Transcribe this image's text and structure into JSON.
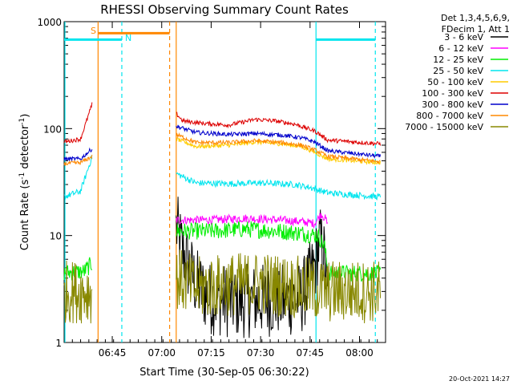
{
  "chart_data": {
    "type": "line",
    "title": "RHESSI Observing Summary Count Rates",
    "xlabel": "Start Time (30-Sep-05 06:30:22)",
    "ylabel_main": "Count Rate (s",
    "ylabel_sup": "-1",
    "ylabel_mid": " detector",
    "ylabel_sup2": "-1",
    "ylabel_end": ")",
    "x_unit": "minutes after 06:30:22",
    "xlim": [
      0,
      97.5
    ],
    "ylim": [
      1,
      1000
    ],
    "yscale": "log",
    "x_ticks": [
      {
        "label": "06:45",
        "value": 14.6
      },
      {
        "label": "07:00",
        "value": 29.6
      },
      {
        "label": "07:15",
        "value": 44.6
      },
      {
        "label": "07:30",
        "value": 59.6
      },
      {
        "label": "07:45",
        "value": 74.6
      },
      {
        "label": "08:00",
        "value": 89.6
      }
    ],
    "y_ticks": [
      {
        "label": "1",
        "value": 1
      },
      {
        "label": "10",
        "value": 10
      },
      {
        "label": "100",
        "value": 100
      },
      {
        "label": "1000",
        "value": 1000
      }
    ],
    "legend_header": [
      "Det 1,3,4,5,6,9,",
      "FDecim 1, Att 1"
    ],
    "timestamp": "20-Oct-2021 14:27",
    "annotations": [
      {
        "label": "S",
        "color": "#ff8800"
      },
      {
        "label": "N",
        "color": "#00e5ee"
      }
    ],
    "vertical_markers": [
      {
        "x": 10.3,
        "color": "#ff8800",
        "style": "solid"
      },
      {
        "x": 32.0,
        "color": "#ff8800",
        "style": "dashed"
      },
      {
        "x": 34.0,
        "color": "#ff8800",
        "style": "solid"
      },
      {
        "x": 17.5,
        "color": "#00e5ee",
        "style": "dashed"
      },
      {
        "x": 76.4,
        "color": "#00e5ee",
        "style": "solid"
      },
      {
        "x": 94.4,
        "color": "#00e5ee",
        "style": "dashed"
      }
    ],
    "bars": [
      {
        "x0": 10.3,
        "x1": 32.0,
        "y": 780,
        "color": "#ff8800"
      },
      {
        "x0": 0,
        "x1": 17.5,
        "y": 680,
        "color": "#00e5ee"
      },
      {
        "x0": 76.4,
        "x1": 94.4,
        "y": 680,
        "color": "#00e5ee"
      }
    ],
    "gaps": [
      [
        8.5,
        34.0
      ]
    ],
    "series": [
      {
        "name": "3 - 6 keV",
        "color": "#000000",
        "noise": 0.35,
        "points": [
          [
            34.0,
            12
          ],
          [
            36,
            7
          ],
          [
            38,
            5
          ],
          [
            40,
            3.5
          ],
          [
            44,
            2.6
          ],
          [
            52,
            2.4
          ],
          [
            60,
            2.5
          ],
          [
            68,
            2.5
          ],
          [
            72,
            2.6
          ],
          [
            76,
            5
          ],
          [
            77.5,
            9
          ],
          [
            79,
            6
          ],
          [
            80,
            2.2
          ]
        ]
      },
      {
        "name": "6 - 12 keV",
        "color": "#ff00ff",
        "noise": 0.04,
        "points": [
          [
            34.0,
            14
          ],
          [
            45,
            14
          ],
          [
            55,
            14.5
          ],
          [
            65,
            14
          ],
          [
            72,
            13.5
          ],
          [
            76,
            13
          ],
          [
            78,
            16
          ],
          [
            79.5,
            14
          ],
          [
            80,
            12
          ]
        ]
      },
      {
        "name": "12 - 25 keV",
        "color": "#00ee00",
        "noise": 0.08,
        "points": [
          [
            0,
            4.5
          ],
          [
            6,
            4.6
          ],
          [
            8.5,
            5.5
          ],
          [
            34.0,
            11
          ],
          [
            45,
            11
          ],
          [
            55,
            11.5
          ],
          [
            65,
            11
          ],
          [
            72,
            10.5
          ],
          [
            77,
            10
          ],
          [
            79,
            8
          ],
          [
            80,
            4.5
          ],
          [
            96,
            4.4
          ]
        ]
      },
      {
        "name": "25 - 50 keV",
        "color": "#00e5ee",
        "noise": 0.03,
        "points": [
          [
            0,
            23
          ],
          [
            5,
            26
          ],
          [
            8.5,
            55
          ],
          [
            34.0,
            38
          ],
          [
            40,
            31
          ],
          [
            50,
            30.5
          ],
          [
            60,
            31
          ],
          [
            70,
            30
          ],
          [
            75,
            28
          ],
          [
            80,
            25
          ],
          [
            96,
            23
          ]
        ]
      },
      {
        "name": "50 - 100 keV",
        "color": "#ffcc00",
        "noise": 0.02,
        "points": [
          [
            34.0,
            80
          ],
          [
            40,
            68
          ],
          [
            50,
            70
          ],
          [
            58,
            75
          ],
          [
            66,
            72
          ],
          [
            72,
            68
          ],
          [
            76,
            60
          ],
          [
            80,
            52
          ],
          [
            96,
            48
          ]
        ]
      },
      {
        "name": "100 - 300 keV",
        "color": "#dd0000",
        "noise": 0.02,
        "points": [
          [
            0,
            75
          ],
          [
            5,
            80
          ],
          [
            8.5,
            170
          ],
          [
            34.0,
            138
          ],
          [
            36,
            118
          ],
          [
            42,
            112
          ],
          [
            50,
            108
          ],
          [
            58,
            122
          ],
          [
            64,
            118
          ],
          [
            70,
            110
          ],
          [
            76,
            95
          ],
          [
            80,
            78
          ],
          [
            96,
            72
          ]
        ]
      },
      {
        "name": "300 - 800 keV",
        "color": "#0000cc",
        "noise": 0.02,
        "points": [
          [
            0,
            52
          ],
          [
            5,
            52
          ],
          [
            8.5,
            65
          ],
          [
            34.0,
            105
          ],
          [
            40,
            92
          ],
          [
            50,
            88
          ],
          [
            58,
            90
          ],
          [
            66,
            87
          ],
          [
            72,
            82
          ],
          [
            76,
            75
          ],
          [
            80,
            62
          ],
          [
            96,
            55
          ]
        ]
      },
      {
        "name": "800 - 7000 keV",
        "color": "#ff8800",
        "noise": 0.02,
        "points": [
          [
            0,
            47
          ],
          [
            5,
            48
          ],
          [
            8.5,
            55
          ],
          [
            34.0,
            88
          ],
          [
            40,
            74
          ],
          [
            50,
            74
          ],
          [
            58,
            77
          ],
          [
            66,
            74
          ],
          [
            72,
            70
          ],
          [
            76,
            63
          ],
          [
            80,
            55
          ],
          [
            96,
            49
          ]
        ]
      },
      {
        "name": "7000 - 15000 keV",
        "color": "#888800",
        "noise": 0.3,
        "points": [
          [
            0,
            3
          ],
          [
            8.5,
            3
          ],
          [
            34.0,
            4
          ],
          [
            40,
            3.2
          ],
          [
            50,
            3.5
          ],
          [
            60,
            3.6
          ],
          [
            70,
            3.3
          ],
          [
            80,
            3
          ],
          [
            96,
            3
          ]
        ]
      }
    ]
  }
}
